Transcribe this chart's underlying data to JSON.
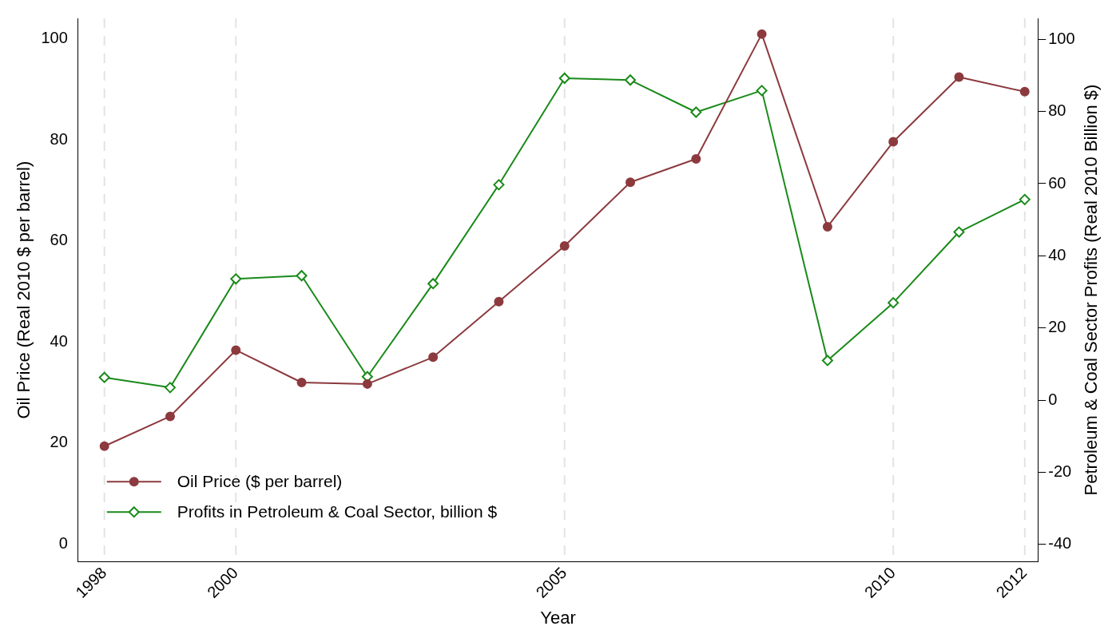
{
  "chart_data": {
    "type": "line",
    "xlabel": "Year",
    "ylabel": "Oil Price (Real 2010 $ per barrel)",
    "y2label": "Petroleum & Coal Sector Profits (Real 2010 Billion $)",
    "x": [
      1998,
      1999,
      2000,
      2001,
      2002,
      2003,
      2004,
      2005,
      2006,
      2007,
      2008,
      2009,
      2010,
      2011,
      2012
    ],
    "series": [
      {
        "name": "Oil Price ($ per barrel)",
        "color": "#8c3a3e",
        "marker": "circle",
        "values": [
          19.4,
          25.3,
          38.4,
          32.0,
          31.7,
          37.0,
          48.0,
          59.0,
          71.6,
          76.2,
          100.9,
          62.8,
          79.6,
          92.4,
          89.5
        ]
      },
      {
        "name": "Profits in Petroleum & Coal Sector, billion $",
        "color": "#1a8a1a",
        "marker": "diamond",
        "axis": "y2",
        "values": [
          6.3,
          3.5,
          33.6,
          34.5,
          6.5,
          32.3,
          59.7,
          89.2,
          88.7,
          79.8,
          85.8,
          11.0,
          27.0,
          46.6,
          55.6
        ]
      }
    ],
    "xlim": [
      1997.6,
      2012.2
    ],
    "xticks": [
      1998,
      2000,
      2005,
      2010,
      2012
    ],
    "ylim": [
      -3.4,
      104
    ],
    "yticks": [
      0,
      20,
      40,
      60,
      80,
      100
    ],
    "y2lim": [
      -44.7,
      105.8
    ],
    "y2ticks": [
      -40,
      -20,
      0,
      20,
      40,
      60,
      80,
      100
    ],
    "grid": "x",
    "legend": "bottom left",
    "line_style": "solid"
  }
}
